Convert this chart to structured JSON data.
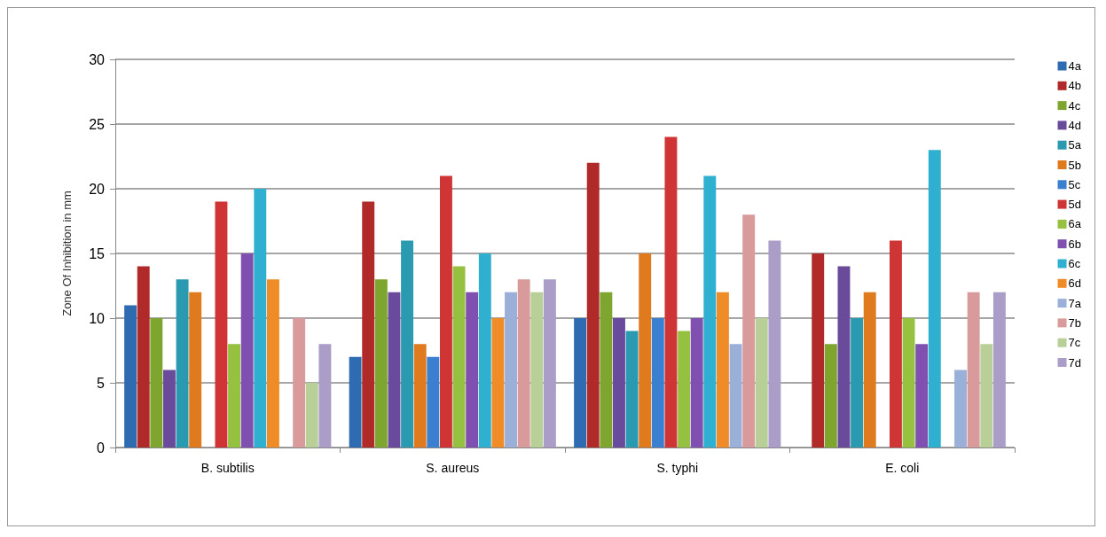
{
  "chart_data": {
    "type": "bar",
    "ylabel": "Zone Of Inhibition in mm",
    "categories": [
      "B. subtilis",
      "S. aureus",
      "S. typhi",
      "E. coli"
    ],
    "series": [
      {
        "name": "4a",
        "color": "#2e6bb0",
        "values": [
          11,
          7,
          10,
          null
        ]
      },
      {
        "name": "4b",
        "color": "#b02a2a",
        "values": [
          14,
          19,
          22,
          15
        ]
      },
      {
        "name": "4c",
        "color": "#7ea62e",
        "values": [
          10,
          13,
          12,
          8
        ]
      },
      {
        "name": "4d",
        "color": "#6a4a9a",
        "values": [
          6,
          12,
          10,
          14
        ]
      },
      {
        "name": "5a",
        "color": "#2a9ab0",
        "values": [
          13,
          16,
          9,
          10
        ]
      },
      {
        "name": "5b",
        "color": "#e07a1e",
        "values": [
          12,
          8,
          15,
          12
        ]
      },
      {
        "name": "5c",
        "color": "#3a7fd0",
        "values": [
          null,
          7,
          10,
          null
        ]
      },
      {
        "name": "5d",
        "color": "#d03535",
        "values": [
          19,
          21,
          24,
          16
        ]
      },
      {
        "name": "6a",
        "color": "#95c040",
        "values": [
          8,
          14,
          9,
          10
        ]
      },
      {
        "name": "6b",
        "color": "#8050b0",
        "values": [
          15,
          12,
          10,
          8
        ]
      },
      {
        "name": "6c",
        "color": "#30b0d0",
        "values": [
          20,
          15,
          21,
          23
        ]
      },
      {
        "name": "6d",
        "color": "#f08c28",
        "values": [
          13,
          10,
          12,
          null
        ]
      },
      {
        "name": "7a",
        "color": "#9ab0d8",
        "values": [
          null,
          12,
          8,
          6
        ]
      },
      {
        "name": "7b",
        "color": "#d89a9a",
        "values": [
          10,
          13,
          18,
          12
        ]
      },
      {
        "name": "7c",
        "color": "#b8d098",
        "values": [
          5,
          12,
          10,
          8
        ]
      },
      {
        "name": "7d",
        "color": "#aa9ec8",
        "values": [
          8,
          13,
          16,
          12
        ]
      }
    ],
    "ylim": [
      0,
      30
    ],
    "yticks": [
      0,
      5,
      10,
      15,
      20,
      25,
      30
    ],
    "grid": "y",
    "legend": "right"
  }
}
